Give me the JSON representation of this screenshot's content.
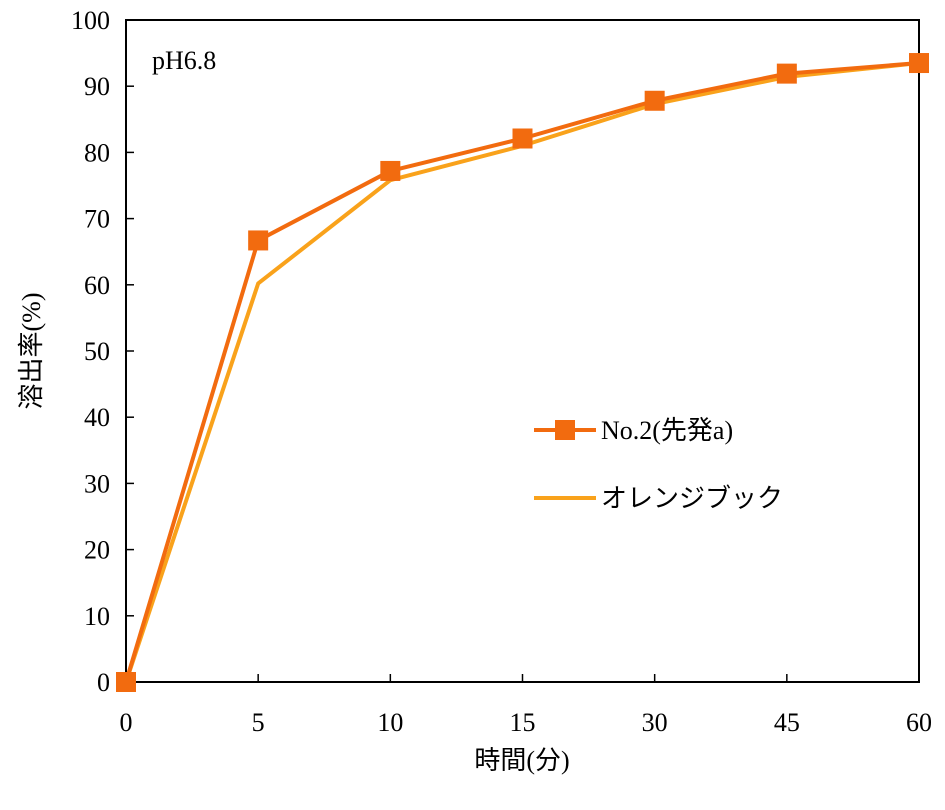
{
  "chart_data": {
    "type": "line",
    "title": "",
    "annotation": "pH6.8",
    "xlabel": "時間(分)",
    "ylabel": "溶出率(%)",
    "categories": [
      "0",
      "5",
      "10",
      "15",
      "30",
      "45",
      "60"
    ],
    "ylim": [
      0,
      100
    ],
    "yticks": [
      0,
      10,
      20,
      30,
      40,
      50,
      60,
      70,
      80,
      90,
      100
    ],
    "grid": false,
    "legend_position": "center-right",
    "series": [
      {
        "name": "No.2(先発a)",
        "color": "#F26B0F",
        "marker": "square",
        "values": [
          0,
          66.7,
          77.2,
          82.1,
          87.8,
          91.9,
          93.5
        ]
      },
      {
        "name": "オレンジブック",
        "color": "#F9A21B",
        "marker": "none",
        "values": [
          0,
          60.2,
          75.8,
          81.0,
          87.3,
          91.4,
          93.5
        ]
      }
    ]
  }
}
